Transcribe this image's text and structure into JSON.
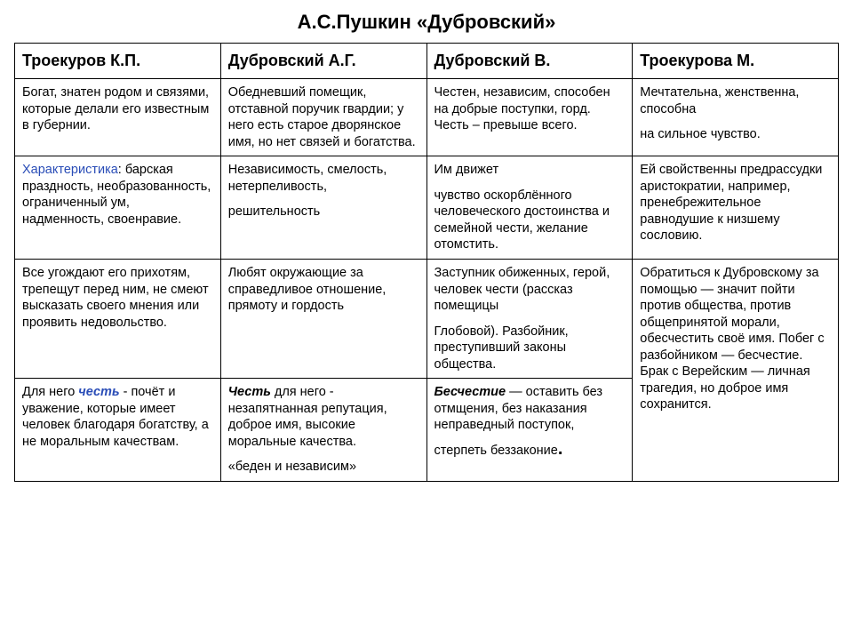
{
  "title": "А.С.Пушкин «Дубровский»",
  "columns": [
    "Троекуров К.П.",
    "Дубровский А.Г.",
    "Дубровский В.",
    "Троекурова М."
  ],
  "row1": {
    "c1": "Богат, знатен родом и связями, которые делали его известным в губернии.",
    "c2": "Обедневший помещик, отставной поручик гвардии; у него есть старое дворянское имя, но нет связей и богатства.",
    "c3": "Честен, независим, способен на добрые поступки, горд. Честь – превыше всего.",
    "c4a": "Мечтательна, женственна, способна",
    "c4b": "на сильное чувство."
  },
  "row2": {
    "c1_label": "Характеристика",
    "c1_text": ": барская праздность, необразованность, ограниченный ум, надменность, своенравие.",
    "c2a": "Независимость, смелость, нетерпеливость,",
    "c2b": "решительность",
    "c3a": "Им движет",
    "c3b": "чувство оскорблённого человеческого достоинства и семейной чести, желание отомстить.",
    "c4": "Ей свойственны предрассудки аристократии, например, пренебрежительное равнодушие к низшему сословию."
  },
  "row3": {
    "c1": "Все угождают его прихотям, трепещут перед ним, не смеют высказать своего мнения или проявить недовольство.",
    "c2": "Любят окружающие за справедливое отношение, прямоту и гордость",
    "c3a": "Заступник обиженных, герой, человек чести (рассказ помещицы",
    "c3b": "Глобовой).  Разбойник, преступивший законы общества.",
    "c4merged": "Обратиться к Дубровскому за помощью — значит пойти против общества, против общепринятой морали, обесчестить своё имя. Побег с разбойником — бесчестие. Брак с Верейским — личная трагедия, но доброе имя сохранится."
  },
  "row4": {
    "c1_pre": "Для него ",
    "c1_kw": "честь",
    "c1_post": " - почёт и уважение, которые имеет человек благодаря богатству, а не моральным качествам.",
    "c2_kw": "Честь",
    "c2_posta": " для него - незапятнанная репутация, доброе имя, высокие моральные качества.",
    "c2_b": "«беден и независим»",
    "c3_kw": "Бесчестие",
    "c3_posta": " — оставить без отмщения, без наказания неправедный поступок,",
    "c3_b": "стерпеть беззаконие"
  }
}
